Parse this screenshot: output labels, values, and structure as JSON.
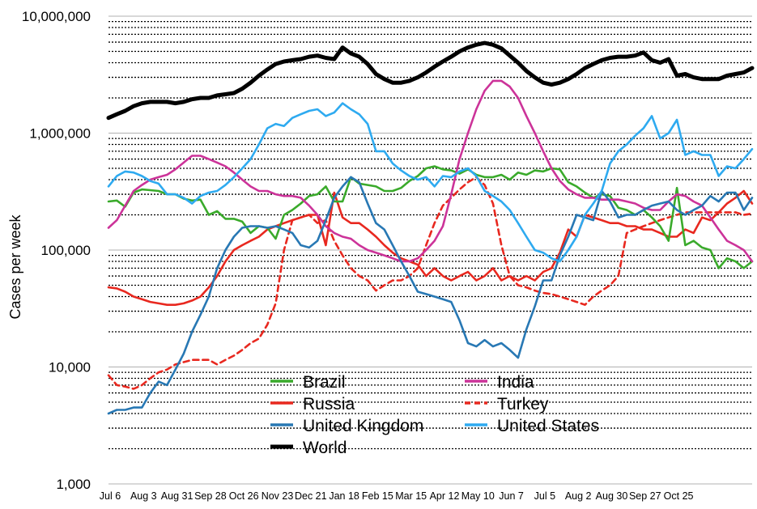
{
  "chart_data": {
    "type": "line",
    "ylabel": "Cases per week",
    "xlabel": "",
    "y_scale": "log",
    "ylim": [
      1000,
      10000000
    ],
    "y_ticks": [
      "1,000",
      "10,000",
      "100,000",
      "1,000,000",
      "10,000,000"
    ],
    "x_ticks": [
      "Jul 6",
      "Aug 3",
      "Aug 31",
      "Sep 28",
      "Oct 26",
      "Nov 23",
      "Dec 21",
      "Jan 18",
      "Feb 15",
      "Mar 15",
      "Apr 12",
      "May 10",
      "Jun 7",
      "Jul 5",
      "Aug 2",
      "Aug 30",
      "Sep 27",
      "Oct 25"
    ],
    "grid": "horizontal dotted minor, solid major",
    "legend_position": "bottom-center",
    "series": [
      {
        "name": "Brazil",
        "color": "#3aaa2b",
        "style": "solid",
        "values": [
          260000,
          265000,
          235000,
          310000,
          330000,
          325000,
          320000,
          300000,
          300000,
          275000,
          265000,
          270000,
          200000,
          215000,
          185000,
          185000,
          175000,
          140000,
          160000,
          155000,
          125000,
          200000,
          220000,
          250000,
          290000,
          300000,
          350000,
          260000,
          260000,
          420000,
          370000,
          360000,
          350000,
          320000,
          320000,
          340000,
          390000,
          430000,
          500000,
          520000,
          490000,
          480000,
          450000,
          490000,
          440000,
          420000,
          420000,
          440000,
          400000,
          460000,
          440000,
          480000,
          470000,
          500000,
          490000,
          380000,
          350000,
          310000,
          280000,
          300000,
          290000,
          230000,
          220000,
          200000,
          220000,
          190000,
          160000,
          120000,
          340000,
          110000,
          120000,
          105000,
          100000,
          70000,
          85000,
          80000,
          70000,
          80000
        ]
      },
      {
        "name": "India",
        "color": "#cc3399",
        "style": "solid",
        "values": [
          155000,
          180000,
          240000,
          320000,
          360000,
          400000,
          420000,
          440000,
          490000,
          560000,
          640000,
          640000,
          600000,
          560000,
          520000,
          460000,
          400000,
          350000,
          320000,
          320000,
          300000,
          290000,
          290000,
          280000,
          240000,
          200000,
          160000,
          140000,
          130000,
          125000,
          110000,
          100000,
          95000,
          90000,
          85000,
          80000,
          80000,
          85000,
          100000,
          120000,
          160000,
          300000,
          600000,
          1000000,
          1600000,
          2300000,
          2800000,
          2800000,
          2500000,
          2000000,
          1400000,
          1000000,
          700000,
          500000,
          390000,
          330000,
          300000,
          280000,
          280000,
          270000,
          270000,
          270000,
          260000,
          250000,
          230000,
          220000,
          220000,
          260000,
          300000,
          290000,
          260000,
          240000,
          190000,
          150000,
          120000,
          110000,
          100000,
          80000
        ]
      },
      {
        "name": "Russia",
        "color": "#e8281f",
        "style": "solid",
        "values": [
          48000,
          47000,
          44000,
          40000,
          38000,
          36000,
          35000,
          34000,
          34000,
          35000,
          37000,
          40000,
          48000,
          60000,
          80000,
          100000,
          110000,
          120000,
          130000,
          150000,
          160000,
          170000,
          180000,
          190000,
          200000,
          200000,
          110000,
          310000,
          190000,
          170000,
          170000,
          150000,
          130000,
          110000,
          95000,
          85000,
          80000,
          75000,
          60000,
          70000,
          60000,
          55000,
          60000,
          65000,
          55000,
          60000,
          70000,
          55000,
          60000,
          55000,
          60000,
          55000,
          65000,
          70000,
          95000,
          150000,
          130000,
          200000,
          190000,
          180000,
          170000,
          170000,
          160000,
          160000,
          150000,
          150000,
          140000,
          130000,
          130000,
          150000,
          140000,
          190000,
          180000,
          210000,
          250000,
          280000,
          320000,
          250000
        ]
      },
      {
        "name": "Turkey",
        "color": "#e8281f",
        "style": "dashed",
        "values": [
          8500,
          7000,
          6800,
          6500,
          7000,
          8000,
          9000,
          9500,
          10500,
          11000,
          11500,
          11500,
          11500,
          10500,
          11500,
          12500,
          14000,
          16000,
          17500,
          23000,
          35000,
          100000,
          180000,
          190000,
          200000,
          170000,
          180000,
          120000,
          90000,
          70000,
          60000,
          55000,
          45000,
          50000,
          55000,
          55000,
          60000,
          70000,
          110000,
          170000,
          240000,
          280000,
          330000,
          380000,
          420000,
          360000,
          250000,
          110000,
          60000,
          50000,
          48000,
          45000,
          43000,
          42000,
          40000,
          38000,
          36000,
          34000,
          40000,
          45000,
          50000,
          60000,
          140000,
          150000,
          160000,
          170000,
          180000,
          190000,
          200000,
          210000,
          210000,
          210000,
          210000,
          210000,
          210000,
          210000,
          200000,
          205000
        ]
      },
      {
        "name": "United Kingdom",
        "color": "#2878b4",
        "style": "solid",
        "values": [
          4000,
          4300,
          4300,
          4500,
          4500,
          6000,
          7500,
          7000,
          9500,
          13000,
          20000,
          28000,
          40000,
          70000,
          100000,
          130000,
          155000,
          160000,
          160000,
          155000,
          160000,
          150000,
          140000,
          110000,
          105000,
          120000,
          180000,
          280000,
          350000,
          420000,
          380000,
          250000,
          170000,
          150000,
          110000,
          80000,
          60000,
          44000,
          42000,
          40000,
          38000,
          36000,
          25000,
          16000,
          15000,
          17000,
          15000,
          16000,
          14000,
          12000,
          21000,
          33000,
          55000,
          55000,
          90000,
          130000,
          200000,
          190000,
          180000,
          320000,
          260000,
          190000,
          200000,
          200000,
          220000,
          240000,
          250000,
          260000,
          220000,
          200000,
          220000,
          240000,
          290000,
          260000,
          310000,
          310000,
          220000,
          280000
        ]
      },
      {
        "name": "United States",
        "color": "#2eaaf0",
        "style": "solid",
        "values": [
          350000,
          430000,
          470000,
          460000,
          430000,
          390000,
          370000,
          300000,
          300000,
          280000,
          250000,
          290000,
          310000,
          320000,
          360000,
          420000,
          500000,
          600000,
          800000,
          1100000,
          1200000,
          1150000,
          1350000,
          1450000,
          1550000,
          1600000,
          1400000,
          1500000,
          1800000,
          1600000,
          1450000,
          1200000,
          700000,
          700000,
          550000,
          480000,
          430000,
          400000,
          420000,
          350000,
          430000,
          420000,
          470000,
          500000,
          430000,
          320000,
          290000,
          260000,
          220000,
          170000,
          130000,
          100000,
          95000,
          85000,
          80000,
          100000,
          130000,
          200000,
          250000,
          320000,
          550000,
          700000,
          800000,
          950000,
          1100000,
          1400000,
          900000,
          1000000,
          1300000,
          650000,
          700000,
          650000,
          650000,
          430000,
          520000,
          500000,
          600000,
          730000
        ]
      },
      {
        "name": "World",
        "color": "#000000",
        "style": "solid",
        "bold": true,
        "values": [
          1350000,
          1450000,
          1550000,
          1700000,
          1800000,
          1850000,
          1850000,
          1850000,
          1800000,
          1850000,
          1950000,
          2000000,
          2000000,
          2100000,
          2150000,
          2200000,
          2400000,
          2700000,
          3100000,
          3500000,
          3900000,
          4100000,
          4200000,
          4300000,
          4500000,
          4600000,
          4400000,
          4300000,
          5400000,
          4800000,
          4500000,
          3900000,
          3200000,
          2900000,
          2700000,
          2700000,
          2800000,
          3000000,
          3300000,
          3700000,
          4100000,
          4500000,
          5000000,
          5400000,
          5700000,
          5900000,
          5700000,
          5300000,
          4600000,
          4000000,
          3400000,
          3000000,
          2700000,
          2600000,
          2700000,
          2900000,
          3200000,
          3600000,
          3900000,
          4200000,
          4400000,
          4500000,
          4500000,
          4600000,
          4900000,
          4200000,
          4000000,
          4300000,
          3100000,
          3200000,
          3000000,
          2900000,
          2900000,
          2900000,
          3100000,
          3200000,
          3300000,
          3600000
        ]
      }
    ]
  }
}
